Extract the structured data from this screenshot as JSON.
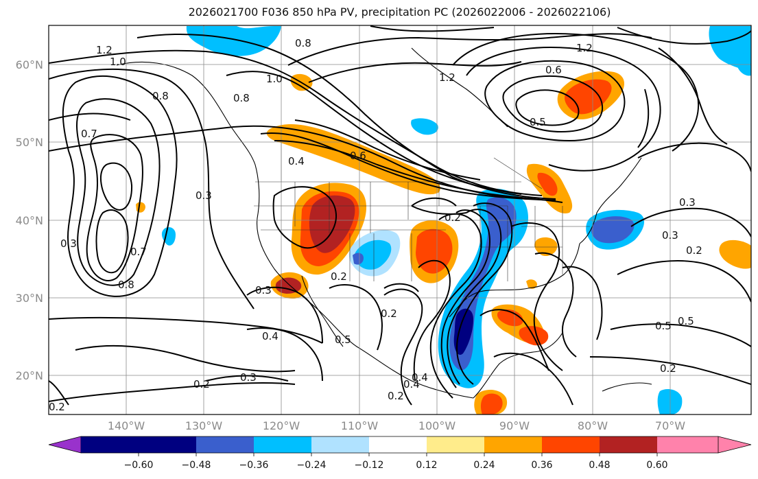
{
  "title": "2026021700 F036 850 hPa PV, precipitation PC (2026022006 - 2026022106)",
  "map": {
    "lat_labels": [
      "60°N",
      "50°N",
      "40°N",
      "30°N",
      "20°N"
    ],
    "lon_labels": [
      "140°W",
      "130°W",
      "120°W",
      "110°W",
      "100°W",
      "90°W",
      "80°W",
      "70°W"
    ],
    "contour_labels": [
      "1.2",
      "1.0",
      "0.8",
      "0.8",
      "0.8",
      "0.7",
      "1.0",
      "1.2",
      "0.6",
      "0.5",
      "0.4",
      "0.6",
      "0.3",
      "0.2",
      "0.7",
      "0.8",
      "0.3",
      "0.3",
      "0.2",
      "0.4",
      "0.5",
      "0.3",
      "0.2",
      "0.2",
      "0.3",
      "0.4",
      "0.2",
      "0.3",
      "0.2",
      "0.5",
      "0.5",
      "0.2",
      "1.2",
      "0.2",
      "0.4"
    ]
  },
  "colorbar": {
    "ticks": [
      "−0.60",
      "−0.48",
      "−0.36",
      "−0.24",
      "−0.12",
      "0.12",
      "0.24",
      "0.36",
      "0.48",
      "0.60"
    ],
    "colors": [
      "#9932cc",
      "#000080",
      "#3a5fcd",
      "#00bfff",
      "#b0e2ff",
      "#ffffff",
      "#ffec8b",
      "#ffa500",
      "#ff4500",
      "#b22222",
      "#ff82ab"
    ]
  }
}
